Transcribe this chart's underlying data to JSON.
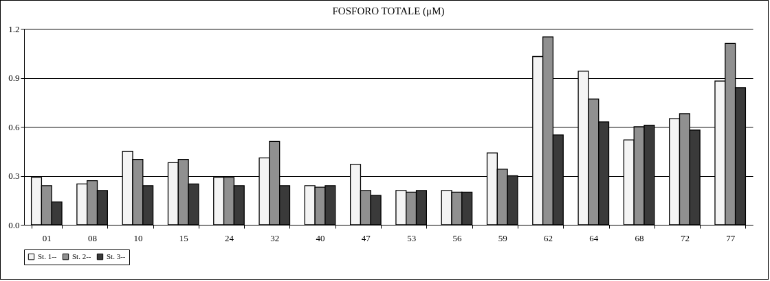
{
  "chart_data": {
    "type": "bar",
    "title": "FOSFORO TOTALE (μM)",
    "categories": [
      "01",
      "08",
      "10",
      "15",
      "24",
      "32",
      "40",
      "47",
      "53",
      "56",
      "59",
      "62",
      "64",
      "68",
      "72",
      "77"
    ],
    "series": [
      {
        "name": "St. 1--",
        "color": "#f4f4f4",
        "values": [
          0.29,
          0.25,
          0.45,
          0.38,
          0.29,
          0.41,
          0.24,
          0.37,
          0.21,
          0.21,
          0.44,
          1.03,
          0.94,
          0.52,
          0.65,
          0.88
        ]
      },
      {
        "name": "St. 2--",
        "color": "#909090",
        "values": [
          0.24,
          0.27,
          0.4,
          0.4,
          0.29,
          0.51,
          0.23,
          0.21,
          0.2,
          0.2,
          0.34,
          1.15,
          0.77,
          0.6,
          0.68,
          1.11
        ]
      },
      {
        "name": "St. 3--",
        "color": "#3a3a3a",
        "values": [
          0.14,
          0.21,
          0.24,
          0.25,
          0.24,
          0.24,
          0.24,
          0.18,
          0.21,
          0.2,
          0.3,
          0.55,
          0.63,
          0.61,
          0.58,
          0.84
        ]
      }
    ],
    "ylim": [
      0,
      1.2
    ],
    "yticks": [
      {
        "value": 0,
        "label": "0.0"
      },
      {
        "value": 0.3,
        "label": "0.3"
      },
      {
        "value": 0.6,
        "label": "0.6"
      },
      {
        "value": 0.9,
        "label": "0.9"
      },
      {
        "value": 1.2,
        "label": "1.2"
      }
    ],
    "grid": "y",
    "legend": "bottom"
  }
}
